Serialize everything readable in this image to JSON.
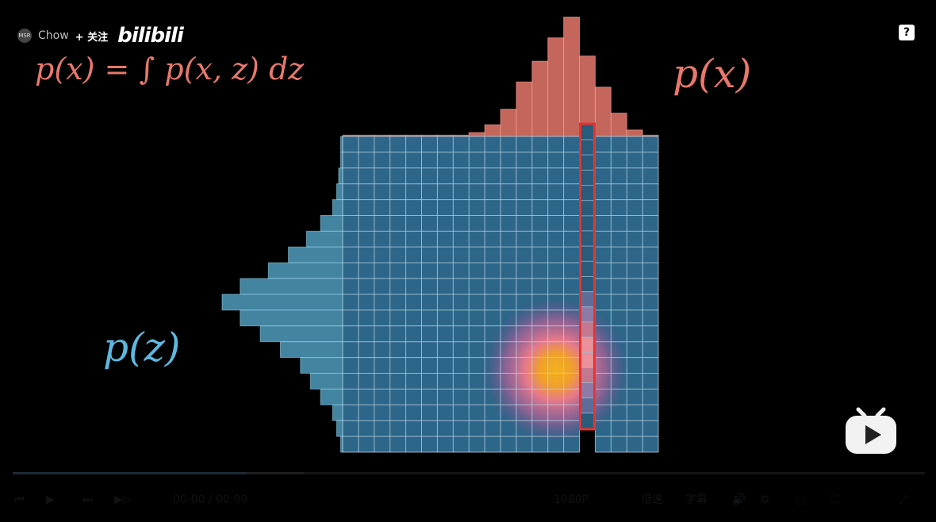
{
  "uploader": {
    "avatar_text": "MSR",
    "name": "Chow",
    "follow_label": "+ 关注"
  },
  "brand": {
    "logo_text": "bilibili"
  },
  "help_label": "?",
  "formula": {
    "px_integral": "p(x) = ∫ p(x, z) dz",
    "px_label": "p(x)",
    "pz_label": "p(z)"
  },
  "colors": {
    "pink": "#e8786c",
    "blue": "#5db8df",
    "grid_fill": "#2d6688",
    "grid_line": "#b9d6e6",
    "highlight": "#e6322e"
  },
  "chart_data": {
    "type": "heatmap",
    "grid": {
      "columns": 20,
      "rows": 20
    },
    "px_histogram": [
      0.01,
      0.01,
      0.01,
      0.01,
      0.01,
      0.01,
      0.01,
      0.01,
      0.03,
      0.09,
      0.21,
      0.42,
      0.58,
      0.76,
      0.92,
      0.62,
      0.38,
      0.18,
      0.05,
      0.01
    ],
    "pz_histogram": [
      0.01,
      0.01,
      0.02,
      0.03,
      0.05,
      0.11,
      0.18,
      0.27,
      0.37,
      0.51,
      0.6,
      0.51,
      0.41,
      0.31,
      0.21,
      0.16,
      0.11,
      0.05,
      0.03,
      0.01
    ],
    "hotspot": {
      "column": 13.5,
      "row": 14.8,
      "spread": 1.8
    },
    "selected_column": 15
  },
  "controls": {
    "labels": [
      "⏮",
      "▶",
      "⏭",
      "▶▷",
      "00:00 / 00:00",
      "",
      "1080P",
      "倍速",
      "字幕",
      "🔊",
      "⚙",
      "⬚",
      "⛶",
      "⤢"
    ]
  }
}
